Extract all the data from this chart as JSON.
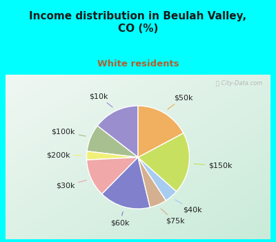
{
  "title": "Income distribution in Beulah Valley,\nCO (%)",
  "subtitle": "White residents",
  "title_color": "#1a1a1a",
  "subtitle_color": "#b06030",
  "background_cyan": "#00ffff",
  "background_chart_tl": "#e8f5f0",
  "background_chart_br": "#c8e8d8",
  "labels": [
    "$10k",
    "$100k",
    "$200k",
    "$30k",
    "$60k",
    "$75k",
    "$40k",
    "$150k",
    "$50k"
  ],
  "values": [
    13.5,
    8.0,
    2.5,
    11.0,
    15.0,
    5.0,
    4.0,
    18.0,
    16.0
  ],
  "colors": [
    "#9b8ecf",
    "#a8c090",
    "#f0f078",
    "#f0a8a8",
    "#8080cc",
    "#d4b090",
    "#a8ccf0",
    "#c8e060",
    "#f0b060"
  ],
  "startangle": 90,
  "label_fontsize": 8,
  "label_color": "#222222",
  "watermark": "City-Data.com"
}
